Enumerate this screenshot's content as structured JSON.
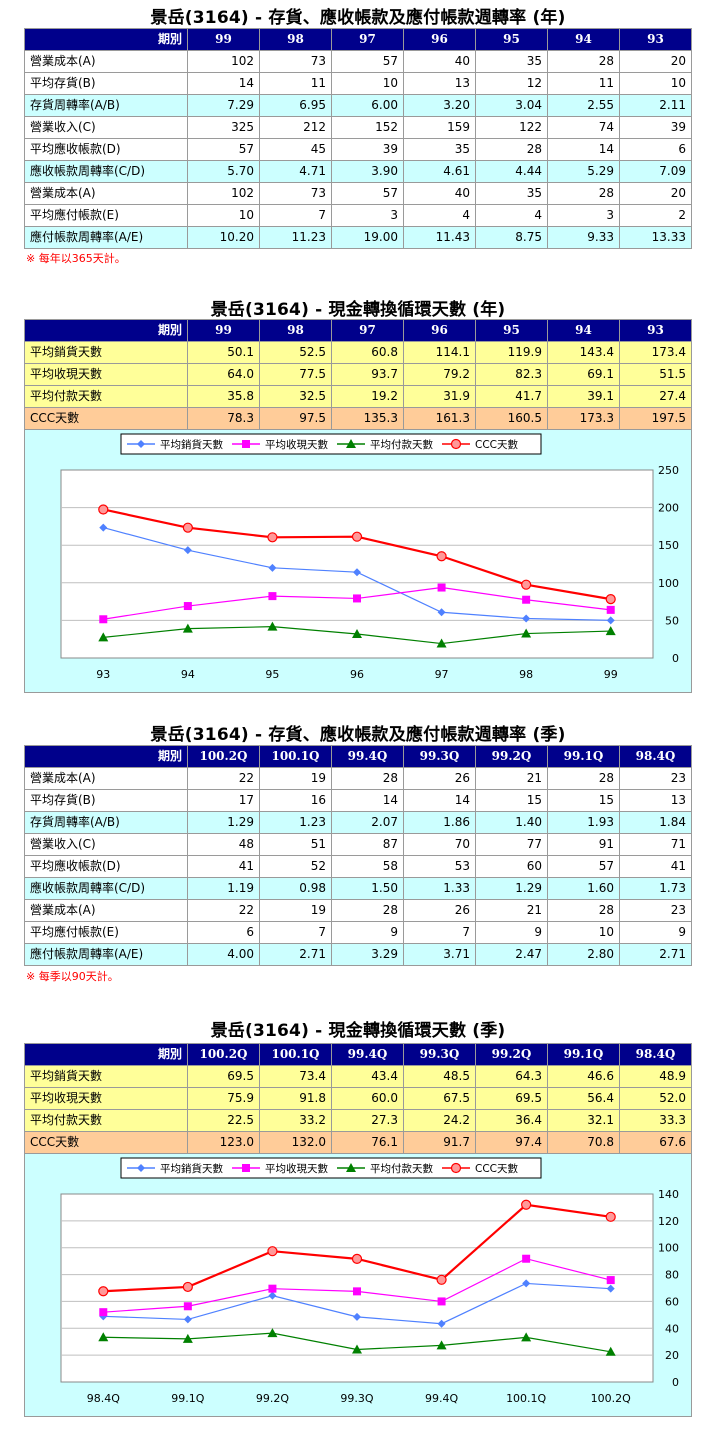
{
  "sections": {
    "annual_turnover": {
      "title": "景岳(3164) - 存貨、應收帳款及應付帳款週轉率 (年)",
      "header_label": "期別",
      "periods": [
        "99",
        "98",
        "97",
        "96",
        "95",
        "94",
        "93"
      ],
      "rows": [
        {
          "label": "營業成本(A)",
          "values": [
            "102",
            "73",
            "57",
            "40",
            "35",
            "28",
            "20"
          ]
        },
        {
          "label": "平均存貨(B)",
          "values": [
            "14",
            "11",
            "10",
            "13",
            "12",
            "11",
            "10"
          ]
        },
        {
          "label": "存貨周轉率(A/B)",
          "values": [
            "7.29",
            "6.95",
            "6.00",
            "3.20",
            "3.04",
            "2.55",
            "2.11"
          ]
        },
        {
          "label": "營業收入(C)",
          "values": [
            "325",
            "212",
            "152",
            "159",
            "122",
            "74",
            "39"
          ]
        },
        {
          "label": "平均應收帳款(D)",
          "values": [
            "57",
            "45",
            "39",
            "35",
            "28",
            "14",
            "6"
          ]
        },
        {
          "label": "應收帳款周轉率(C/D)",
          "values": [
            "5.70",
            "4.71",
            "3.90",
            "4.61",
            "4.44",
            "5.29",
            "7.09"
          ]
        },
        {
          "label": "營業成本(A)",
          "values": [
            "102",
            "73",
            "57",
            "40",
            "35",
            "28",
            "20"
          ]
        },
        {
          "label": "平均應付帳款(E)",
          "values": [
            "10",
            "7",
            "3",
            "4",
            "4",
            "3",
            "2"
          ]
        },
        {
          "label": "應付帳款周轉率(A/E)",
          "values": [
            "10.20",
            "11.23",
            "19.00",
            "11.43",
            "8.75",
            "9.33",
            "13.33"
          ]
        }
      ],
      "note": "※ 每年以365天計。"
    },
    "annual_ccc": {
      "title": "景岳(3164) - 現金轉換循環天數 (年)",
      "header_label": "期別",
      "periods": [
        "99",
        "98",
        "97",
        "96",
        "95",
        "94",
        "93"
      ],
      "rows": [
        {
          "label": "平均銷貨天數",
          "values": [
            "50.1",
            "52.5",
            "60.8",
            "114.1",
            "119.9",
            "143.4",
            "173.4"
          ]
        },
        {
          "label": "平均收現天數",
          "values": [
            "64.0",
            "77.5",
            "93.7",
            "79.2",
            "82.3",
            "69.1",
            "51.5"
          ]
        },
        {
          "label": "平均付款天數",
          "values": [
            "35.8",
            "32.5",
            "19.2",
            "31.9",
            "41.7",
            "39.1",
            "27.4"
          ]
        },
        {
          "label": "CCC天數",
          "values": [
            "78.3",
            "97.5",
            "135.3",
            "161.3",
            "160.5",
            "173.3",
            "197.5"
          ]
        }
      ]
    },
    "quarter_turnover": {
      "title": "景岳(3164) - 存貨、應收帳款及應付帳款週轉率 (季)",
      "header_label": "期別",
      "periods": [
        "100.2Q",
        "100.1Q",
        "99.4Q",
        "99.3Q",
        "99.2Q",
        "99.1Q",
        "98.4Q"
      ],
      "rows": [
        {
          "label": "營業成本(A)",
          "values": [
            "22",
            "19",
            "28",
            "26",
            "21",
            "28",
            "23"
          ]
        },
        {
          "label": "平均存貨(B)",
          "values": [
            "17",
            "16",
            "14",
            "14",
            "15",
            "15",
            "13"
          ]
        },
        {
          "label": "存貨周轉率(A/B)",
          "values": [
            "1.29",
            "1.23",
            "2.07",
            "1.86",
            "1.40",
            "1.93",
            "1.84"
          ]
        },
        {
          "label": "營業收入(C)",
          "values": [
            "48",
            "51",
            "87",
            "70",
            "77",
            "91",
            "71"
          ]
        },
        {
          "label": "平均應收帳款(D)",
          "values": [
            "41",
            "52",
            "58",
            "53",
            "60",
            "57",
            "41"
          ]
        },
        {
          "label": "應收帳款周轉率(C/D)",
          "values": [
            "1.19",
            "0.98",
            "1.50",
            "1.33",
            "1.29",
            "1.60",
            "1.73"
          ]
        },
        {
          "label": "營業成本(A)",
          "values": [
            "22",
            "19",
            "28",
            "26",
            "21",
            "28",
            "23"
          ]
        },
        {
          "label": "平均應付帳款(E)",
          "values": [
            "6",
            "7",
            "9",
            "7",
            "9",
            "10",
            "9"
          ]
        },
        {
          "label": "應付帳款周轉率(A/E)",
          "values": [
            "4.00",
            "2.71",
            "3.29",
            "3.71",
            "2.47",
            "2.80",
            "2.71"
          ]
        }
      ],
      "note": "※ 每季以90天計。"
    },
    "quarter_ccc": {
      "title": "景岳(3164) - 現金轉換循環天數 (季)",
      "header_label": "期別",
      "periods": [
        "100.2Q",
        "100.1Q",
        "99.4Q",
        "99.3Q",
        "99.2Q",
        "99.1Q",
        "98.4Q"
      ],
      "rows": [
        {
          "label": "平均銷貨天數",
          "values": [
            "69.5",
            "73.4",
            "43.4",
            "48.5",
            "64.3",
            "46.6",
            "48.9"
          ]
        },
        {
          "label": "平均收現天數",
          "values": [
            "75.9",
            "91.8",
            "60.0",
            "67.5",
            "69.5",
            "56.4",
            "52.0"
          ]
        },
        {
          "label": "平均付款天數",
          "values": [
            "22.5",
            "33.2",
            "27.3",
            "24.2",
            "36.4",
            "32.1",
            "33.3"
          ]
        },
        {
          "label": "CCC天數",
          "values": [
            "123.0",
            "132.0",
            "76.1",
            "91.7",
            "97.4",
            "70.8",
            "67.6"
          ]
        }
      ]
    }
  },
  "chart_data": [
    {
      "type": "line",
      "categories": [
        "93",
        "94",
        "95",
        "96",
        "97",
        "98",
        "99"
      ],
      "ylim": [
        0,
        250
      ],
      "yticks": [
        0,
        50,
        100,
        150,
        200,
        250
      ],
      "grid": true,
      "legend_position": "top",
      "y_axis_side": "right",
      "series": [
        {
          "name": "平均銷貨天數",
          "color": "#4f81ff",
          "marker": "diamond",
          "values": [
            173.4,
            143.4,
            119.9,
            114.1,
            60.8,
            52.5,
            50.1
          ]
        },
        {
          "name": "平均收現天數",
          "color": "#ff00ff",
          "marker": "square",
          "values": [
            51.5,
            69.1,
            82.3,
            79.2,
            93.7,
            77.5,
            64.0
          ]
        },
        {
          "name": "平均付款天數",
          "color": "#008000",
          "marker": "triangle",
          "values": [
            27.4,
            39.1,
            41.7,
            31.9,
            19.2,
            32.5,
            35.8
          ]
        },
        {
          "name": "CCC天數",
          "color": "#ff0000",
          "marker": "circle",
          "values": [
            197.5,
            173.3,
            160.5,
            161.3,
            135.3,
            97.5,
            78.3
          ]
        }
      ]
    },
    {
      "type": "line",
      "categories": [
        "98.4Q",
        "99.1Q",
        "99.2Q",
        "99.3Q",
        "99.4Q",
        "100.1Q",
        "100.2Q"
      ],
      "ylim": [
        0,
        140
      ],
      "yticks": [
        0,
        20,
        40,
        60,
        80,
        100,
        120,
        140
      ],
      "grid": true,
      "legend_position": "top",
      "y_axis_side": "right",
      "series": [
        {
          "name": "平均銷貨天數",
          "color": "#4f81ff",
          "marker": "diamond",
          "values": [
            48.9,
            46.6,
            64.3,
            48.5,
            43.4,
            73.4,
            69.5
          ]
        },
        {
          "name": "平均收現天數",
          "color": "#ff00ff",
          "marker": "square",
          "values": [
            52.0,
            56.4,
            69.5,
            67.5,
            60.0,
            91.8,
            75.9
          ]
        },
        {
          "name": "平均付款天數",
          "color": "#008000",
          "marker": "triangle",
          "values": [
            33.3,
            32.1,
            36.4,
            24.2,
            27.3,
            33.2,
            22.5
          ]
        },
        {
          "name": "CCC天數",
          "color": "#ff0000",
          "marker": "circle",
          "values": [
            67.6,
            70.8,
            97.4,
            91.7,
            76.1,
            132.0,
            123.0
          ]
        }
      ]
    }
  ]
}
